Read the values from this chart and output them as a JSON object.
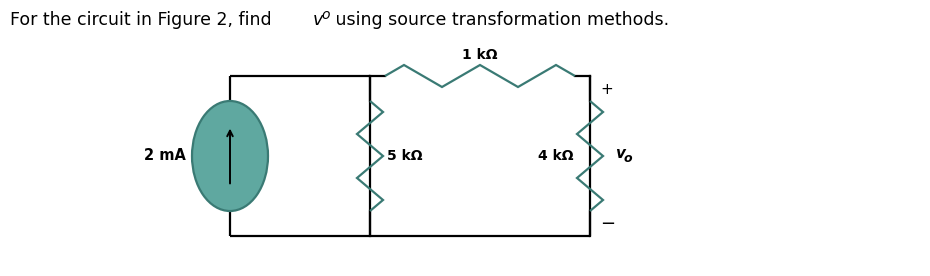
{
  "title_part1": "For the circuit in Figure 2, find ",
  "title_part2": " using source transformation methods.",
  "title_vo": "v",
  "title_vo_sub": "o",
  "title_fontsize": 12.5,
  "bg_color": "#ffffff",
  "source_fill": "#5fa8a0",
  "source_stroke": "#3a7a74",
  "resistor_color": "#3a7a74",
  "wire_color": "#000000",
  "label_1kohm": "1 kΩ",
  "label_2mA": "2 mA",
  "label_5kohm": "5 kΩ",
  "label_4kohm": "4 kΩ",
  "label_vo": "v",
  "label_vo_sub": "o",
  "plus_sign": "+",
  "minus_sign": "−",
  "lw_wire": 1.6,
  "lw_resistor": 1.6,
  "lw_source": 1.6
}
